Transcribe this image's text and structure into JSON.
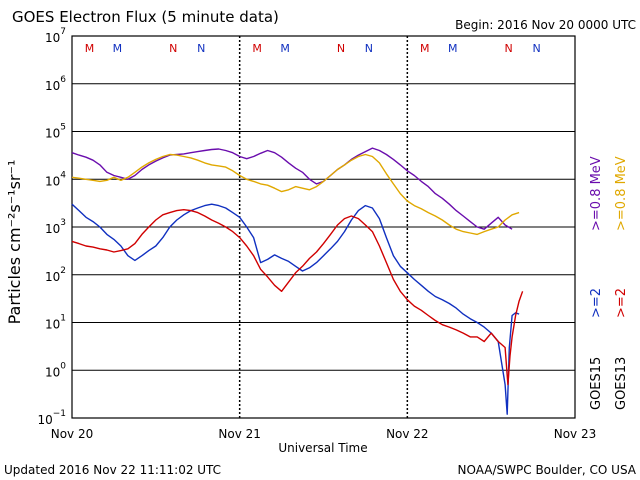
{
  "chart_data": {
    "type": "line",
    "title": "GOES Electron Flux (5 minute data)",
    "begin_label": "Begin: 2016 Nov 20 0000 UTC",
    "updated_label": "Updated 2016 Nov 22 11:11:02 UTC",
    "credit_label": "NOAA/SWPC Boulder, CO USA",
    "xlabel": "Universal Time",
    "ylabel": "Particles cm⁻²s⁻¹sr⁻¹",
    "x_unit": "hours since 2016-11-20 00:00 UTC",
    "xlim": [
      0,
      72
    ],
    "ylim_log10": [
      -1,
      7
    ],
    "yscale": "log",
    "threshold_line_y": 1000,
    "x_ticks": [
      {
        "value": 0,
        "label": "Nov 20"
      },
      {
        "value": 24,
        "label": "Nov 21"
      },
      {
        "value": 48,
        "label": "Nov 22"
      },
      {
        "value": 72,
        "label": "Nov 23"
      }
    ],
    "y_ticks": [
      {
        "exp": -1,
        "base": "10",
        "sup": "−1"
      },
      {
        "exp": 0,
        "base": "10",
        "sup": "0"
      },
      {
        "exp": 1,
        "base": "10",
        "sup": "1"
      },
      {
        "exp": 2,
        "base": "10",
        "sup": "2"
      },
      {
        "exp": 3,
        "base": "10",
        "sup": "3"
      },
      {
        "exp": 4,
        "base": "10",
        "sup": "4"
      },
      {
        "exp": 5,
        "base": "10",
        "sup": "5"
      },
      {
        "exp": 6,
        "base": "10",
        "sup": "6"
      },
      {
        "exp": 7,
        "base": "10",
        "sup": "7"
      }
    ],
    "markers": [
      {
        "x": 2.5,
        "label": "M",
        "color": "#d00000"
      },
      {
        "x": 6.5,
        "label": "M",
        "color": "#1030c0"
      },
      {
        "x": 14.5,
        "label": "N",
        "color": "#d00000"
      },
      {
        "x": 18.5,
        "label": "N",
        "color": "#1030c0"
      },
      {
        "x": 26.5,
        "label": "M",
        "color": "#d00000"
      },
      {
        "x": 30.5,
        "label": "M",
        "color": "#1030c0"
      },
      {
        "x": 38.5,
        "label": "N",
        "color": "#d00000"
      },
      {
        "x": 42.5,
        "label": "N",
        "color": "#1030c0"
      },
      {
        "x": 50.5,
        "label": "M",
        "color": "#d00000"
      },
      {
        "x": 54.5,
        "label": "M",
        "color": "#1030c0"
      },
      {
        "x": 62.5,
        "label": "N",
        "color": "#d00000"
      },
      {
        "x": 66.5,
        "label": "N",
        "color": "#1030c0"
      }
    ],
    "legend": [
      {
        "label": "GOES15",
        "color": "#000000"
      },
      {
        "label": "GOES13",
        "color": "#000000"
      },
      {
        "label": ">=2",
        "color": "#1030c0"
      },
      {
        "label": ">=2",
        "color": "#d00000"
      },
      {
        "label": ">=0.8 MeV",
        "color": "#6a0dad"
      },
      {
        "label": ">=0.8 MeV",
        "color": "#e0a800"
      }
    ],
    "series": [
      {
        "name": "GOES15 >=0.8 MeV",
        "color": "#6a0dad",
        "points": [
          [
            0,
            36000
          ],
          [
            1,
            32000
          ],
          [
            2,
            29000
          ],
          [
            3,
            25000
          ],
          [
            4,
            20000
          ],
          [
            5,
            14000
          ],
          [
            6,
            12000
          ],
          [
            7,
            11000
          ],
          [
            8,
            10000
          ],
          [
            9,
            12000
          ],
          [
            10,
            16000
          ],
          [
            11,
            20000
          ],
          [
            12,
            24000
          ],
          [
            13,
            28000
          ],
          [
            14,
            32000
          ],
          [
            15,
            33000
          ],
          [
            16,
            34000
          ],
          [
            17,
            36000
          ],
          [
            18,
            38000
          ],
          [
            19,
            40000
          ],
          [
            20,
            42000
          ],
          [
            21,
            43000
          ],
          [
            22,
            40000
          ],
          [
            23,
            36000
          ],
          [
            24,
            30000
          ],
          [
            25,
            27000
          ],
          [
            26,
            30000
          ],
          [
            27,
            35000
          ],
          [
            28,
            40000
          ],
          [
            29,
            36000
          ],
          [
            30,
            29000
          ],
          [
            31,
            22000
          ],
          [
            32,
            17000
          ],
          [
            33,
            14000
          ],
          [
            34,
            10000
          ],
          [
            35,
            8000
          ],
          [
            36,
            9000
          ],
          [
            37,
            12000
          ],
          [
            38,
            16000
          ],
          [
            39,
            20000
          ],
          [
            40,
            26000
          ],
          [
            41,
            32000
          ],
          [
            42,
            38000
          ],
          [
            43,
            45000
          ],
          [
            44,
            40000
          ],
          [
            45,
            33000
          ],
          [
            46,
            26000
          ],
          [
            47,
            20000
          ],
          [
            48,
            15000
          ],
          [
            49,
            12000
          ],
          [
            50,
            9000
          ],
          [
            51,
            7000
          ],
          [
            52,
            5000
          ],
          [
            53,
            4000
          ],
          [
            54,
            3000
          ],
          [
            55,
            2200
          ],
          [
            56,
            1700
          ],
          [
            57,
            1300
          ],
          [
            58,
            1000
          ],
          [
            59,
            900
          ],
          [
            60,
            1200
          ],
          [
            61,
            1600
          ],
          [
            62,
            1100
          ],
          [
            63,
            900
          ]
        ]
      },
      {
        "name": "GOES13 >=0.8 MeV",
        "color": "#e0a800",
        "points": [
          [
            0,
            11000
          ],
          [
            1,
            10500
          ],
          [
            2,
            10000
          ],
          [
            3,
            9500
          ],
          [
            4,
            9000
          ],
          [
            5,
            9500
          ],
          [
            6,
            11000
          ],
          [
            7,
            9500
          ],
          [
            8,
            11000
          ],
          [
            9,
            14000
          ],
          [
            10,
            18000
          ],
          [
            11,
            22000
          ],
          [
            12,
            26000
          ],
          [
            13,
            30000
          ],
          [
            14,
            33000
          ],
          [
            15,
            32000
          ],
          [
            16,
            30000
          ],
          [
            17,
            28000
          ],
          [
            18,
            25000
          ],
          [
            19,
            22000
          ],
          [
            20,
            20000
          ],
          [
            21,
            19000
          ],
          [
            22,
            18000
          ],
          [
            23,
            15000
          ],
          [
            24,
            12000
          ],
          [
            25,
            10000
          ],
          [
            26,
            9000
          ],
          [
            27,
            8000
          ],
          [
            28,
            7500
          ],
          [
            29,
            6500
          ],
          [
            30,
            5500
          ],
          [
            31,
            6000
          ],
          [
            32,
            7000
          ],
          [
            33,
            6500
          ],
          [
            34,
            6000
          ],
          [
            35,
            7000
          ],
          [
            36,
            9000
          ],
          [
            37,
            12000
          ],
          [
            38,
            16000
          ],
          [
            39,
            20000
          ],
          [
            40,
            25000
          ],
          [
            41,
            30000
          ],
          [
            42,
            33000
          ],
          [
            43,
            30000
          ],
          [
            44,
            22000
          ],
          [
            45,
            13000
          ],
          [
            46,
            8000
          ],
          [
            47,
            5000
          ],
          [
            48,
            3500
          ],
          [
            49,
            2800
          ],
          [
            50,
            2400
          ],
          [
            51,
            2000
          ],
          [
            52,
            1700
          ],
          [
            53,
            1400
          ],
          [
            54,
            1100
          ],
          [
            55,
            900
          ],
          [
            56,
            800
          ],
          [
            57,
            750
          ],
          [
            58,
            700
          ],
          [
            59,
            800
          ],
          [
            60,
            900
          ],
          [
            61,
            1000
          ],
          [
            62,
            1400
          ],
          [
            63,
            1800
          ],
          [
            64,
            2000
          ]
        ]
      },
      {
        "name": "GOES15 >=2 MeV",
        "color": "#1030c0",
        "points": [
          [
            0,
            3000
          ],
          [
            1,
            2200
          ],
          [
            2,
            1600
          ],
          [
            3,
            1300
          ],
          [
            4,
            1000
          ],
          [
            5,
            700
          ],
          [
            6,
            550
          ],
          [
            7,
            400
          ],
          [
            8,
            250
          ],
          [
            9,
            200
          ],
          [
            10,
            250
          ],
          [
            11,
            320
          ],
          [
            12,
            400
          ],
          [
            13,
            600
          ],
          [
            14,
            1000
          ],
          [
            15,
            1400
          ],
          [
            16,
            1800
          ],
          [
            17,
            2200
          ],
          [
            18,
            2500
          ],
          [
            19,
            2800
          ],
          [
            20,
            3000
          ],
          [
            21,
            2800
          ],
          [
            22,
            2500
          ],
          [
            23,
            2000
          ],
          [
            24,
            1600
          ],
          [
            25,
            1000
          ],
          [
            26,
            600
          ],
          [
            27,
            180
          ],
          [
            28,
            210
          ],
          [
            29,
            260
          ],
          [
            30,
            220
          ],
          [
            31,
            190
          ],
          [
            32,
            150
          ],
          [
            33,
            120
          ],
          [
            34,
            140
          ],
          [
            35,
            180
          ],
          [
            36,
            250
          ],
          [
            37,
            350
          ],
          [
            38,
            500
          ],
          [
            39,
            800
          ],
          [
            40,
            1400
          ],
          [
            41,
            2200
          ],
          [
            42,
            2800
          ],
          [
            43,
            2500
          ],
          [
            44,
            1500
          ],
          [
            45,
            600
          ],
          [
            46,
            250
          ],
          [
            47,
            150
          ],
          [
            48,
            110
          ],
          [
            49,
            80
          ],
          [
            50,
            60
          ],
          [
            51,
            45
          ],
          [
            52,
            35
          ],
          [
            53,
            30
          ],
          [
            54,
            25
          ],
          [
            55,
            20
          ],
          [
            56,
            15
          ],
          [
            57,
            12
          ],
          [
            58,
            10
          ],
          [
            59,
            8
          ],
          [
            60,
            6
          ],
          [
            61,
            4
          ],
          [
            62,
            0.5
          ],
          [
            62.3,
            0.12
          ],
          [
            62.6,
            3
          ],
          [
            63,
            14
          ],
          [
            63.5,
            16
          ],
          [
            64,
            15
          ]
        ]
      },
      {
        "name": "GOES13 >=2 MeV",
        "color": "#d00000",
        "points": [
          [
            0,
            500
          ],
          [
            1,
            450
          ],
          [
            2,
            400
          ],
          [
            3,
            380
          ],
          [
            4,
            350
          ],
          [
            5,
            330
          ],
          [
            6,
            300
          ],
          [
            7,
            320
          ],
          [
            8,
            350
          ],
          [
            9,
            450
          ],
          [
            10,
            700
          ],
          [
            11,
            1000
          ],
          [
            12,
            1400
          ],
          [
            13,
            1800
          ],
          [
            14,
            2000
          ],
          [
            15,
            2200
          ],
          [
            16,
            2300
          ],
          [
            17,
            2200
          ],
          [
            18,
            2000
          ],
          [
            19,
            1700
          ],
          [
            20,
            1400
          ],
          [
            21,
            1200
          ],
          [
            22,
            1000
          ],
          [
            23,
            800
          ],
          [
            24,
            600
          ],
          [
            25,
            400
          ],
          [
            26,
            250
          ],
          [
            27,
            130
          ],
          [
            28,
            90
          ],
          [
            29,
            60
          ],
          [
            30,
            45
          ],
          [
            31,
            70
          ],
          [
            32,
            110
          ],
          [
            33,
            150
          ],
          [
            34,
            220
          ],
          [
            35,
            300
          ],
          [
            36,
            450
          ],
          [
            37,
            700
          ],
          [
            38,
            1100
          ],
          [
            39,
            1500
          ],
          [
            40,
            1700
          ],
          [
            41,
            1500
          ],
          [
            42,
            1100
          ],
          [
            43,
            800
          ],
          [
            44,
            400
          ],
          [
            45,
            180
          ],
          [
            46,
            80
          ],
          [
            47,
            45
          ],
          [
            48,
            30
          ],
          [
            49,
            22
          ],
          [
            50,
            18
          ],
          [
            51,
            14
          ],
          [
            52,
            11
          ],
          [
            53,
            9
          ],
          [
            54,
            8
          ],
          [
            55,
            7
          ],
          [
            56,
            6
          ],
          [
            57,
            5
          ],
          [
            58,
            5
          ],
          [
            59,
            4
          ],
          [
            60,
            6
          ],
          [
            61,
            4
          ],
          [
            62,
            3
          ],
          [
            62.4,
            0.5
          ],
          [
            62.7,
            2
          ],
          [
            63,
            5
          ],
          [
            63.5,
            14
          ],
          [
            64,
            28
          ],
          [
            64.5,
            45
          ]
        ]
      }
    ]
  }
}
